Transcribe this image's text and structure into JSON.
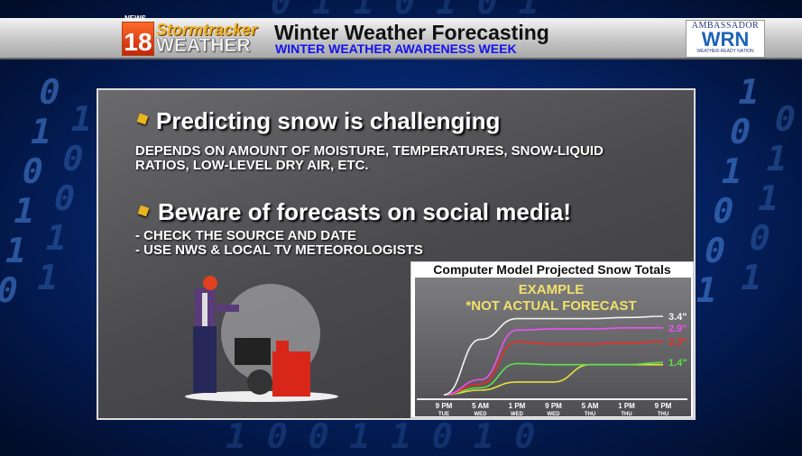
{
  "header": {
    "logo_station": "18",
    "logo_news": "NEWS",
    "logo_network": "abc",
    "logo_brand_line1": "Stormtracker",
    "logo_brand_line2": "WEATHER",
    "title": "Winter Weather Forecasting",
    "subtitle": "WINTER WEATHER AWARENESS WEEK",
    "partner_logo": {
      "top": "AMBASSADOR",
      "main": "WRN",
      "bottom": "WEATHER-READY NATION"
    }
  },
  "slide": {
    "point1": {
      "heading": "Predicting snow is challenging",
      "body_line1": "DEPENDS ON AMOUNT OF MOISTURE, TEMPERATURES, SNOW-LIQUID",
      "body_line2": "RATIOS, LOW-LEVEL DRY AIR, ETC."
    },
    "point2": {
      "heading": "Beware of forecasts on social media!",
      "line1": "- CHECK THE SOURCE AND DATE",
      "line2": "- USE NWS & LOCAL TV METEOROLOGISTS"
    }
  },
  "chart_data": {
    "type": "line",
    "title": "Computer Model Projected Snow Totals",
    "annotation_line1": "EXAMPLE",
    "annotation_line2": "*NOT ACTUAL FORECAST",
    "categories": [
      {
        "time": "9 PM",
        "day": "TUE"
      },
      {
        "time": "5 AM",
        "day": "WED"
      },
      {
        "time": "1 PM",
        "day": "WED"
      },
      {
        "time": "9 PM",
        "day": "WED"
      },
      {
        "time": "5 AM",
        "day": "THU"
      },
      {
        "time": "1 PM",
        "day": "THU"
      },
      {
        "time": "9 PM",
        "day": "THU"
      }
    ],
    "series": [
      {
        "color": "#f2f2f2",
        "label": "3.4\"",
        "values": [
          0,
          2.4,
          3.3,
          3.3,
          3.3,
          3.35,
          3.4
        ]
      },
      {
        "color": "#f050f0",
        "label": "2.9\"",
        "values": [
          0,
          0.65,
          2.8,
          2.85,
          2.85,
          2.9,
          2.9
        ]
      },
      {
        "color": "#ee2a1e",
        "label": "2.3\"",
        "values": [
          0,
          0.45,
          2.3,
          2.2,
          2.2,
          2.25,
          2.3
        ]
      },
      {
        "color": "#5de04a",
        "label": "1.4\"",
        "values": [
          0,
          0.3,
          1.35,
          1.3,
          1.3,
          1.3,
          1.4
        ]
      },
      {
        "color": "#e8e040",
        "label": "",
        "values": [
          0,
          0.2,
          0.55,
          0.55,
          1.3,
          1.3,
          1.3
        ]
      }
    ],
    "ylim": [
      0,
      3.6
    ],
    "grid": false
  }
}
